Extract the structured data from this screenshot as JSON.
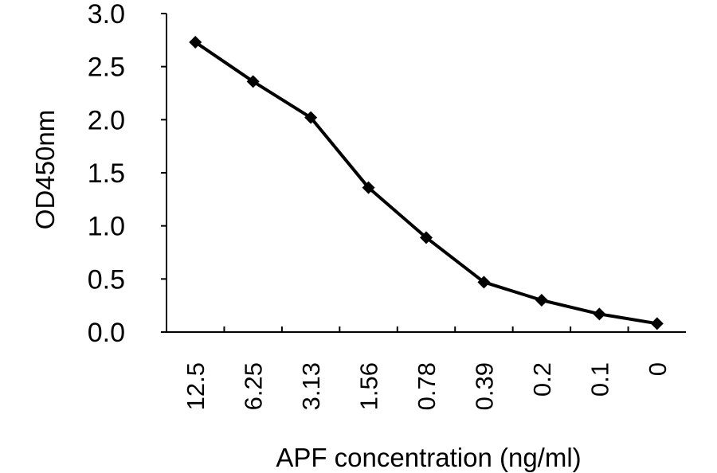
{
  "chart_data": {
    "type": "line",
    "title": "",
    "xlabel": "APF concentration (ng/ml)",
    "ylabel": "OD450nm",
    "categories": [
      "12.5",
      "6.25",
      "3.13",
      "1.56",
      "0.78",
      "0.39",
      "0.2",
      "0.1",
      "0"
    ],
    "series": [
      {
        "values": [
          2.73,
          2.36,
          2.02,
          1.36,
          0.89,
          0.47,
          0.3,
          0.17,
          0.08
        ]
      }
    ],
    "ylim": [
      0,
      3
    ],
    "yticks": [
      "0.0",
      "0.5",
      "1.0",
      "1.5",
      "2.0",
      "2.5",
      "3.0"
    ],
    "grid": false,
    "legend": "none",
    "marker": "diamond",
    "line_color": "#000000"
  }
}
